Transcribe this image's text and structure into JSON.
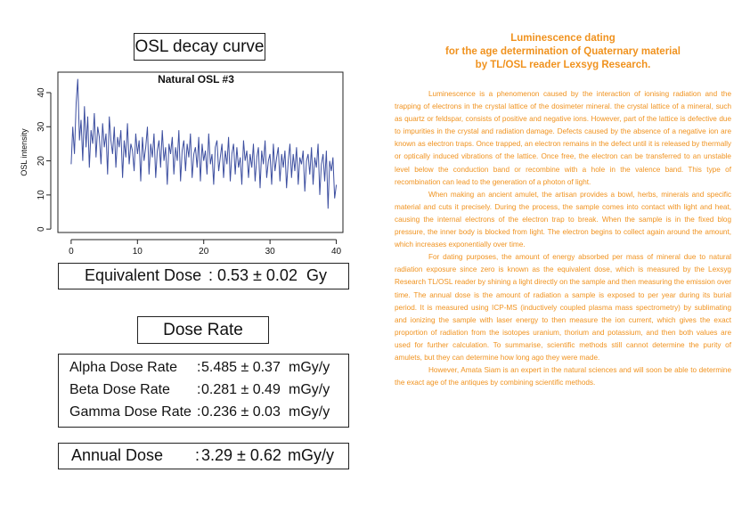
{
  "left_panel": {
    "chart_box_title": "OSL decay curve",
    "equivalent_dose": {
      "label": "Equivalent Dose",
      "value": ": 0.53 ± 0.02",
      "unit": "Gy"
    },
    "dose_rate_title": "Dose Rate",
    "dose_rates": [
      {
        "label": "Alpha Dose Rate",
        "value": "5.485 ± 0.37",
        "unit": "mGy/y"
      },
      {
        "label": "Beta Dose Rate",
        "value": "0.281 ± 0.49",
        "unit": "mGy/y"
      },
      {
        "label": "Gamma Dose Rate",
        "value": "0.236 ± 0.03",
        "unit": "mGy/y"
      }
    ],
    "annual_dose": {
      "label": "Annual Dose",
      "value": "3.29 ± 0.62",
      "unit": "mGy/y"
    }
  },
  "chart_data": {
    "type": "line",
    "title": "Natural OSL #3",
    "xlabel": "",
    "ylabel": "OSL intensity",
    "xlim": [
      -2,
      41
    ],
    "ylim": [
      -1,
      46
    ],
    "xticks": [
      0,
      10,
      20,
      30,
      40
    ],
    "yticks": [
      0,
      10,
      20,
      30,
      40
    ],
    "grid": false,
    "line_color": "#3d4fa0",
    "series": [
      {
        "x": [
          0,
          0.25,
          0.5,
          0.75,
          1,
          1.25,
          1.5,
          1.75,
          2,
          2.25,
          2.5,
          2.75,
          3,
          3.25,
          3.5,
          3.75,
          4,
          4.25,
          4.5,
          4.75,
          5,
          5.25,
          5.5,
          5.75,
          6,
          6.25,
          6.5,
          6.75,
          7,
          7.25,
          7.5,
          7.75,
          8,
          8.25,
          8.5,
          8.75,
          9,
          9.25,
          9.5,
          9.75,
          10,
          10.25,
          10.5,
          10.75,
          11,
          11.25,
          11.5,
          11.75,
          12,
          12.25,
          12.5,
          12.75,
          13,
          13.25,
          13.5,
          13.75,
          14,
          14.25,
          14.5,
          14.75,
          15,
          15.25,
          15.5,
          15.75,
          16,
          16.25,
          16.5,
          16.75,
          17,
          17.25,
          17.5,
          17.75,
          18,
          18.25,
          18.5,
          18.75,
          19,
          19.25,
          19.5,
          19.75,
          20,
          20.25,
          20.5,
          20.75,
          21,
          21.25,
          21.5,
          21.75,
          22,
          22.25,
          22.5,
          22.75,
          23,
          23.25,
          23.5,
          23.75,
          24,
          24.25,
          24.5,
          24.75,
          25,
          25.25,
          25.5,
          25.75,
          26,
          26.25,
          26.5,
          26.75,
          27,
          27.25,
          27.5,
          27.75,
          28,
          28.25,
          28.5,
          28.75,
          29,
          29.25,
          29.5,
          29.75,
          30,
          30.25,
          30.5,
          30.75,
          31,
          31.25,
          31.5,
          31.75,
          32,
          32.25,
          32.5,
          32.75,
          33,
          33.25,
          33.5,
          33.75,
          34,
          34.25,
          34.5,
          34.75,
          35,
          35.25,
          35.5,
          35.75,
          36,
          36.25,
          36.5,
          36.75,
          37,
          37.25,
          37.5,
          37.75,
          38,
          38.25,
          38.5,
          38.75,
          39,
          39.25,
          39.5,
          39.75,
          40
        ],
        "y": [
          19,
          30,
          22,
          37,
          44,
          26,
          32,
          20,
          36,
          24,
          33,
          18,
          29,
          25,
          34,
          21,
          30,
          27,
          19,
          31,
          24,
          28,
          16,
          33,
          26,
          22,
          30,
          18,
          27,
          24,
          29,
          15,
          26,
          21,
          31,
          19,
          25,
          23,
          17,
          28,
          22,
          26,
          14,
          27,
          20,
          24,
          30,
          16,
          25,
          21,
          28,
          15,
          23,
          26,
          18,
          29,
          20,
          24,
          13,
          25,
          22,
          27,
          16,
          24,
          20,
          29,
          14,
          23,
          26,
          17,
          25,
          21,
          28,
          15,
          22,
          24,
          18,
          27,
          14,
          25,
          20,
          23,
          16,
          28,
          19,
          22,
          13,
          24,
          26,
          17,
          21,
          25,
          15,
          23,
          19,
          27,
          14,
          22,
          25,
          16,
          24,
          18,
          21,
          13,
          26,
          20,
          23,
          15,
          22,
          18,
          25,
          14,
          21,
          24,
          12,
          23,
          19,
          26,
          15,
          20,
          22,
          13,
          25,
          17,
          21,
          24,
          14,
          22,
          18,
          23,
          12,
          20,
          25,
          15,
          22,
          17,
          24,
          13,
          21,
          19,
          23,
          11,
          20,
          22,
          16,
          24,
          13,
          21,
          18,
          25,
          10,
          19,
          22,
          14,
          23,
          6,
          20,
          17,
          21,
          9,
          13
        ]
      }
    ]
  },
  "document": {
    "title_lines": [
      "Luminescence dating",
      "for the age determination of Quaternary material",
      "by TL/OSL reader Lexsyg Research."
    ],
    "paragraphs": [
      "Luminescence is a phenomenon caused by the interaction of ionising radiation and the trapping of electrons in the crystal lattice of the dosimeter mineral. the crystal lattice of a mineral, such as quartz or feldspar, consists of positive and negative ions. However, part of the lattice is defective due to impurities in the crystal and radiation damage. Defects caused by the absence of a negative ion are known as electron traps. Once trapped, an electron remains in the defect until it is released by thermally or optically induced vibrations of the lattice. Once free, the electron can be transferred to an unstable level below the conduction band or recombine with a hole in the valence band. This type of recombination can lead to the generation of a photon of light.",
      "When making an ancient amulet, the artisan provides a bowl, herbs, minerals and specific material and cuts it precisely. During the process, the sample comes into contact with light and heat, causing the internal electrons of the electron trap to break. When the sample is in the fixed blog pressure, the inner body is blocked from light. The electron begins to collect again around the amount, which increases exponentially over time.",
      "For dating purposes, the amount of energy absorbed per mass of mineral due to natural radiation exposure since zero is known as the equivalent dose, which is measured by the Lexsyg Research TL/OSL reader by shining a light directly on the sample and then measuring the emission over time. The annual dose is the amount of radiation a sample is exposed to per year during its burial period. It is measured using ICP-MS (inductively coupled plasma mass spectrometry) by sublimating and ionizing the sample with laser energy to then measure the ion current, which gives the exact proportion of radiation from the isotopes uranium, thorium and potassium, and then both values are used for further calculation. To summarise, scientific methods still cannot determine the purity of amulets, but they can determine how long ago they were made.",
      "However, Amata Siam is an expert in the natural sciences and will soon be able to determine the exact age of the antiques by combining scientific methods."
    ]
  }
}
